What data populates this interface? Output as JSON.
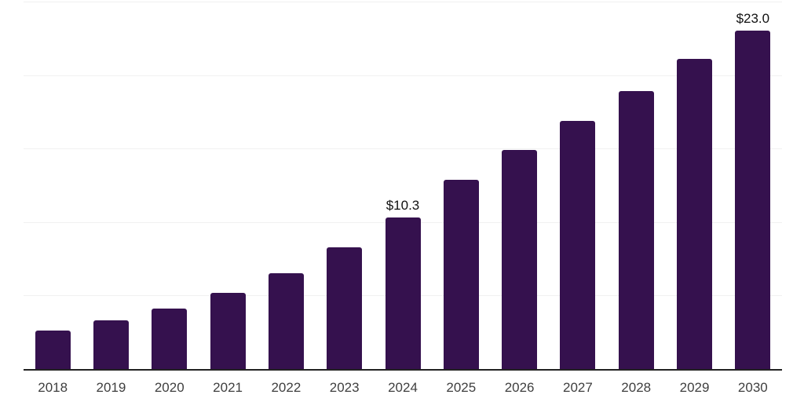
{
  "chart_data": {
    "type": "bar",
    "title": "",
    "xlabel": "",
    "ylabel": "",
    "categories": [
      "2018",
      "2019",
      "2020",
      "2021",
      "2022",
      "2023",
      "2024",
      "2025",
      "2026",
      "2027",
      "2028",
      "2029",
      "2030"
    ],
    "values": [
      2.6,
      3.3,
      4.1,
      5.2,
      6.5,
      8.3,
      10.3,
      12.9,
      14.9,
      16.9,
      18.9,
      21.1,
      23.0
    ],
    "data_labels": [
      {
        "category": "2024",
        "text": "$10.3"
      },
      {
        "category": "2030",
        "text": "$23.0"
      }
    ],
    "ylim": [
      0,
      25
    ],
    "gridline_step": 5,
    "grid": true,
    "legend": "none",
    "colors": {
      "bar_fill": "#35114E",
      "gridline": "#f1f1f1",
      "axis_line": "#222222",
      "tick_label": "#3f3f3f",
      "value_label": "#111111",
      "background": "#ffffff"
    }
  }
}
